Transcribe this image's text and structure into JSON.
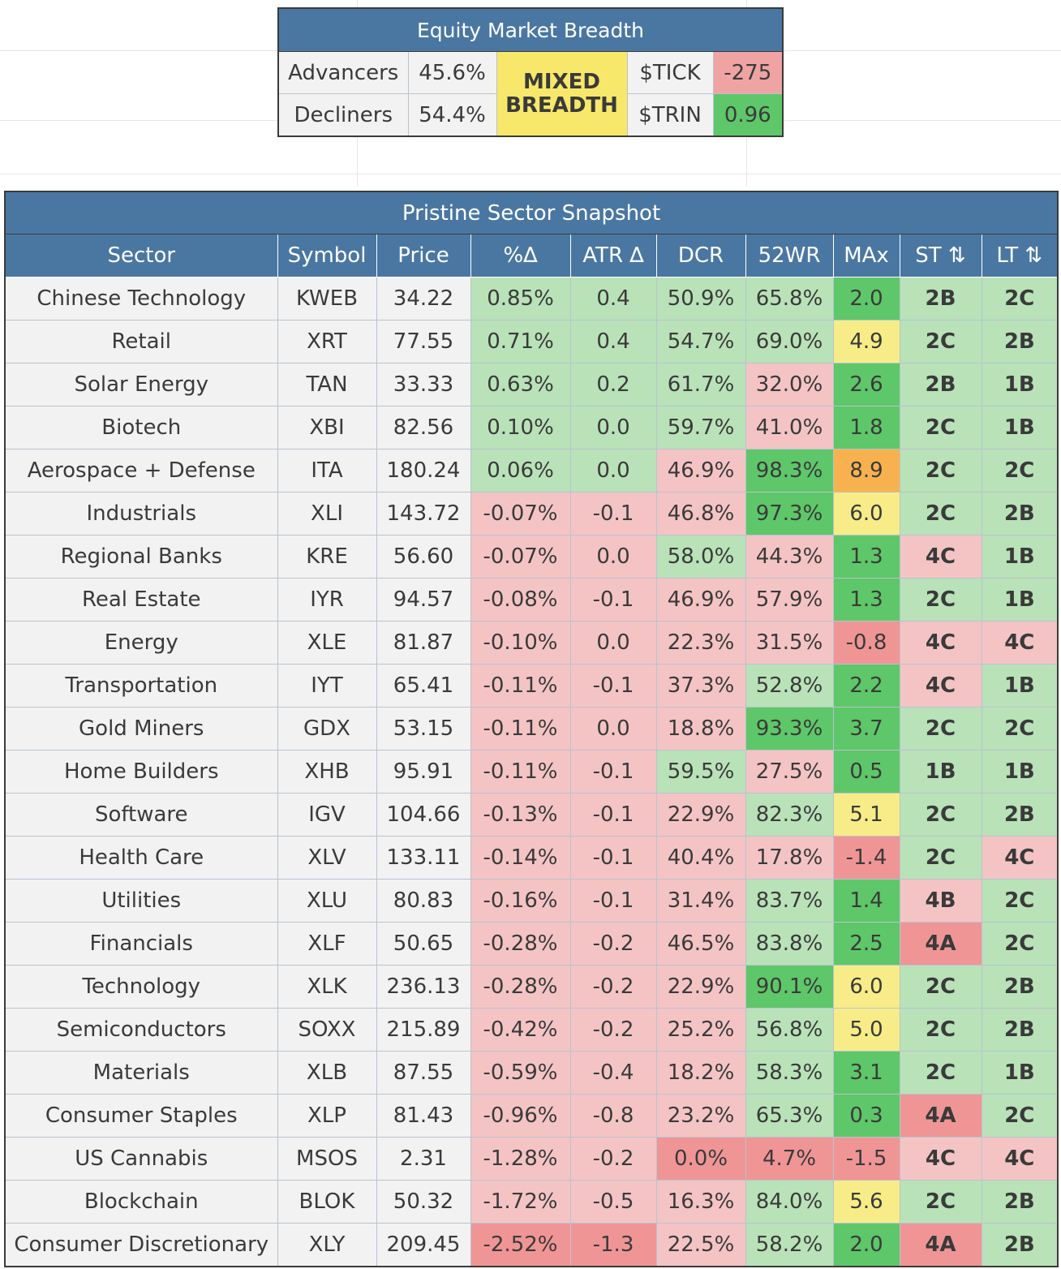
{
  "breadth": {
    "title": "Equity Market Breadth",
    "advancers_label": "Advancers",
    "advancers_value": "45.6%",
    "decliners_label": "Decliners",
    "decliners_value": "54.4%",
    "status": "MIXED BREADTH",
    "tick_label": "$TICK",
    "tick_value": "-275",
    "trin_label": "$TRIN",
    "trin_value": "0.96"
  },
  "snapshot": {
    "title": "Pristine Sector Snapshot",
    "columns": [
      "Sector",
      "Symbol",
      "Price",
      "%∆",
      "ATR ∆",
      "DCR",
      "52WR",
      "MAx",
      "ST ⇅",
      "LT ⇅"
    ],
    "rows": [
      {
        "sector": "Chinese Technology",
        "symbol": "KWEB",
        "price": "34.22",
        "pct": "0.85%",
        "atr": "0.4",
        "dcr": "50.9%",
        "wr": "65.8%",
        "max": "2.0",
        "st": "2B",
        "lt": "2C"
      },
      {
        "sector": "Retail",
        "symbol": "XRT",
        "price": "77.55",
        "pct": "0.71%",
        "atr": "0.4",
        "dcr": "54.7%",
        "wr": "69.0%",
        "max": "4.9",
        "st": "2C",
        "lt": "2B"
      },
      {
        "sector": "Solar Energy",
        "symbol": "TAN",
        "price": "33.33",
        "pct": "0.63%",
        "atr": "0.2",
        "dcr": "61.7%",
        "wr": "32.0%",
        "max": "2.6",
        "st": "2B",
        "lt": "1B"
      },
      {
        "sector": "Biotech",
        "symbol": "XBI",
        "price": "82.56",
        "pct": "0.10%",
        "atr": "0.0",
        "dcr": "59.7%",
        "wr": "41.0%",
        "max": "1.8",
        "st": "2C",
        "lt": "1B"
      },
      {
        "sector": "Aerospace + Defense",
        "symbol": "ITA",
        "price": "180.24",
        "pct": "0.06%",
        "atr": "0.0",
        "dcr": "46.9%",
        "wr": "98.3%",
        "max": "8.9",
        "st": "2C",
        "lt": "2C"
      },
      {
        "sector": "Industrials",
        "symbol": "XLI",
        "price": "143.72",
        "pct": "-0.07%",
        "atr": "-0.1",
        "dcr": "46.8%",
        "wr": "97.3%",
        "max": "6.0",
        "st": "2C",
        "lt": "2B"
      },
      {
        "sector": "Regional Banks",
        "symbol": "KRE",
        "price": "56.60",
        "pct": "-0.07%",
        "atr": "0.0",
        "dcr": "58.0%",
        "wr": "44.3%",
        "max": "1.3",
        "st": "4C",
        "lt": "1B"
      },
      {
        "sector": "Real Estate",
        "symbol": "IYR",
        "price": "94.57",
        "pct": "-0.08%",
        "atr": "-0.1",
        "dcr": "46.9%",
        "wr": "57.9%",
        "max": "1.3",
        "st": "2C",
        "lt": "1B"
      },
      {
        "sector": "Energy",
        "symbol": "XLE",
        "price": "81.87",
        "pct": "-0.10%",
        "atr": "0.0",
        "dcr": "22.3%",
        "wr": "31.5%",
        "max": "-0.8",
        "st": "4C",
        "lt": "4C"
      },
      {
        "sector": "Transportation",
        "symbol": "IYT",
        "price": "65.41",
        "pct": "-0.11%",
        "atr": "-0.1",
        "dcr": "37.3%",
        "wr": "52.8%",
        "max": "2.2",
        "st": "4C",
        "lt": "1B"
      },
      {
        "sector": "Gold Miners",
        "symbol": "GDX",
        "price": "53.15",
        "pct": "-0.11%",
        "atr": "0.0",
        "dcr": "18.8%",
        "wr": "93.3%",
        "max": "3.7",
        "st": "2C",
        "lt": "2C"
      },
      {
        "sector": "Home Builders",
        "symbol": "XHB",
        "price": "95.91",
        "pct": "-0.11%",
        "atr": "-0.1",
        "dcr": "59.5%",
        "wr": "27.5%",
        "max": "0.5",
        "st": "1B",
        "lt": "1B"
      },
      {
        "sector": "Software",
        "symbol": "IGV",
        "price": "104.66",
        "pct": "-0.13%",
        "atr": "-0.1",
        "dcr": "22.9%",
        "wr": "82.3%",
        "max": "5.1",
        "st": "2C",
        "lt": "2B"
      },
      {
        "sector": "Health Care",
        "symbol": "XLV",
        "price": "133.11",
        "pct": "-0.14%",
        "atr": "-0.1",
        "dcr": "40.4%",
        "wr": "17.8%",
        "max": "-1.4",
        "st": "2C",
        "lt": "4C"
      },
      {
        "sector": "Utilities",
        "symbol": "XLU",
        "price": "80.83",
        "pct": "-0.16%",
        "atr": "-0.1",
        "dcr": "31.4%",
        "wr": "83.7%",
        "max": "1.4",
        "st": "4B",
        "lt": "2C"
      },
      {
        "sector": "Financials",
        "symbol": "XLF",
        "price": "50.65",
        "pct": "-0.28%",
        "atr": "-0.2",
        "dcr": "46.5%",
        "wr": "83.8%",
        "max": "2.5",
        "st": "4A",
        "lt": "2C"
      },
      {
        "sector": "Technology",
        "symbol": "XLK",
        "price": "236.13",
        "pct": "-0.28%",
        "atr": "-0.2",
        "dcr": "22.9%",
        "wr": "90.1%",
        "max": "6.0",
        "st": "2C",
        "lt": "2B"
      },
      {
        "sector": "Semiconductors",
        "symbol": "SOXX",
        "price": "215.89",
        "pct": "-0.42%",
        "atr": "-0.2",
        "dcr": "25.2%",
        "wr": "56.8%",
        "max": "5.0",
        "st": "2C",
        "lt": "2B"
      },
      {
        "sector": "Materials",
        "symbol": "XLB",
        "price": "87.55",
        "pct": "-0.59%",
        "atr": "-0.4",
        "dcr": "18.2%",
        "wr": "58.3%",
        "max": "3.1",
        "st": "2C",
        "lt": "1B"
      },
      {
        "sector": "Consumer Staples",
        "symbol": "XLP",
        "price": "81.43",
        "pct": "-0.96%",
        "atr": "-0.8",
        "dcr": "23.2%",
        "wr": "65.3%",
        "max": "0.3",
        "st": "4A",
        "lt": "2C"
      },
      {
        "sector": "US Cannabis",
        "symbol": "MSOS",
        "price": "2.31",
        "pct": "-1.28%",
        "atr": "-0.2",
        "dcr": "0.0%",
        "wr": "4.7%",
        "max": "-1.5",
        "st": "4C",
        "lt": "4C"
      },
      {
        "sector": "Blockchain",
        "symbol": "BLOK",
        "price": "50.32",
        "pct": "-1.72%",
        "atr": "-0.5",
        "dcr": "16.3%",
        "wr": "84.0%",
        "max": "5.6",
        "st": "2C",
        "lt": "2B"
      },
      {
        "sector": "Consumer Discretionary",
        "symbol": "XLY",
        "price": "209.45",
        "pct": "-2.52%",
        "atr": "-1.3",
        "dcr": "22.5%",
        "wr": "58.2%",
        "max": "2.0",
        "st": "4A",
        "lt": "2B"
      }
    ]
  }
}
